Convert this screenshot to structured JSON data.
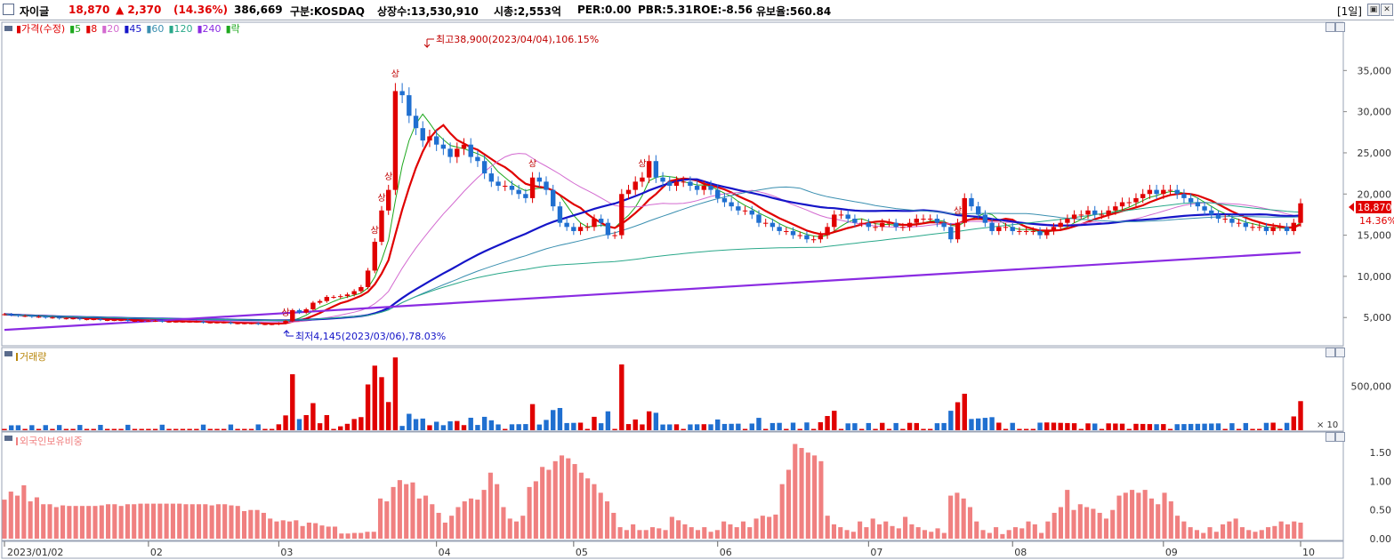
{
  "header": {
    "name": "자이글",
    "price": "18,870",
    "change": "▲ 2,370",
    "change_pct": "(14.36%)",
    "volume": "386,669",
    "market": "구분:KOSDAQ",
    "shares": "상장수:13,530,910",
    "mktcap": "시총:2,553억",
    "per": "PER:0.00",
    "pbr": "PBR:5.31",
    "roe": "ROE:-8.56",
    "float": "유보율:560.84",
    "period": "[1일]",
    "name_color": "#000000",
    "up_color": "#e00000"
  },
  "price_legend": {
    "items": [
      {
        "label": "가격(수정)",
        "color": "#e00000"
      },
      {
        "label": "5",
        "color": "#1ea81e"
      },
      {
        "label": "8",
        "color": "#e00000"
      },
      {
        "label": "20",
        "color": "#d36ad0"
      },
      {
        "label": "45",
        "color": "#1515c8"
      },
      {
        "label": "60",
        "color": "#3a8fb0"
      },
      {
        "label": "120",
        "color": "#2aa88a"
      },
      {
        "label": "240",
        "color": "#8a2be2"
      },
      {
        "label": "락",
        "color": "#1ea81e"
      }
    ]
  },
  "annotations": {
    "high": "최고38,900(2023/04/04),106.15%",
    "low": "최저4,145(2023/03/06),78.03%",
    "limit_up": "상",
    "last_price": "18,870",
    "last_pct": "14.36%"
  },
  "volume_panel": {
    "title": "거래량",
    "multiplier": "× 10"
  },
  "foreign_panel": {
    "title": "외국인보유비중"
  },
  "chart_data": {
    "type": "candlestick",
    "x_ticks": [
      "2023/01/02",
      "02",
      "03",
      "04",
      "05",
      "06",
      "07",
      "08",
      "09",
      "10"
    ],
    "price": {
      "y_ticks": [
        "35,000",
        "30,000",
        "25,000",
        "20,000",
        "15,000",
        "10,000",
        "5,000"
      ],
      "ylim": [
        2000,
        40000
      ],
      "high": 38900,
      "low": 4145,
      "last": 18870,
      "closes": [
        5400,
        5300,
        5200,
        5200,
        5100,
        5100,
        5000,
        5000,
        4900,
        4900,
        4900,
        4800,
        4800,
        4800,
        4700,
        4700,
        4700,
        4700,
        4600,
        4600,
        4600,
        4600,
        4600,
        4500,
        4500,
        4500,
        4500,
        4500,
        4500,
        4400,
        4400,
        4400,
        4400,
        4300,
        4300,
        4300,
        4300,
        4200,
        4200,
        4200,
        4300,
        4600,
        5900,
        5600,
        6000,
        6800,
        7000,
        7500,
        7500,
        7600,
        7800,
        8200,
        8700,
        10700,
        14200,
        18000,
        20500,
        32500,
        32000,
        29500,
        28000,
        26500,
        27000,
        26000,
        25500,
        24500,
        25500,
        26000,
        24500,
        24000,
        22500,
        21500,
        21000,
        21000,
        20500,
        20000,
        19500,
        22000,
        21500,
        20500,
        18500,
        16500,
        16000,
        15500,
        16000,
        16000,
        17000,
        16500,
        15000,
        15000,
        20000,
        20500,
        21500,
        22000,
        24000,
        22000,
        21500,
        21000,
        21500,
        21500,
        21000,
        20500,
        21000,
        20500,
        19500,
        19000,
        18500,
        18000,
        18000,
        17500,
        16500,
        16500,
        16000,
        15500,
        15500,
        15000,
        15000,
        14500,
        14500,
        15000,
        16000,
        17500,
        17500,
        17000,
        16500,
        16500,
        16000,
        16000,
        16500,
        16500,
        16000,
        16000,
        16500,
        17000,
        17000,
        17000,
        16500,
        16000,
        14500,
        16500,
        19500,
        18500,
        17500,
        16500,
        15500,
        16000,
        16000,
        15500,
        15500,
        15500,
        15500,
        15000,
        15500,
        16000,
        16500,
        17000,
        17500,
        17500,
        18000,
        17500,
        17500,
        18000,
        18500,
        19000,
        19000,
        19500,
        20000,
        20500,
        20000,
        20500,
        20500,
        20000,
        19500,
        19000,
        18500,
        18000,
        17500,
        17000,
        17000,
        16500,
        16500,
        16000,
        16000,
        16000,
        15500,
        16000,
        16000,
        15500,
        16500,
        18870
      ],
      "ma": [
        {
          "name": "5",
          "color": "#1ea81e"
        },
        {
          "name": "8",
          "color": "#e00000"
        },
        {
          "name": "20",
          "color": "#d36ad0"
        },
        {
          "name": "45",
          "color": "#1515c8"
        },
        {
          "name": "60",
          "color": "#3a8fb0"
        },
        {
          "name": "120",
          "color": "#2aa88a"
        },
        {
          "name": "240",
          "color": "#8a2be2",
          "values": [
            3500,
            12900
          ]
        }
      ]
    },
    "volume": {
      "y_ticks": [
        "500,000"
      ],
      "unit_label": "× 10",
      "ylim": [
        0,
        900000
      ]
    },
    "foreign_ratio": {
      "y_ticks": [
        "1.50",
        "1.00",
        "0.50",
        "0.00"
      ],
      "ylim": [
        0,
        1.75
      ],
      "values": [
        0.68,
        0.82,
        0.75,
        0.93,
        0.65,
        0.72,
        0.6,
        0.6,
        0.55,
        0.58,
        0.57,
        0.57,
        0.57,
        0.57,
        0.57,
        0.58,
        0.6,
        0.6,
        0.57,
        0.6,
        0.6,
        0.61,
        0.61,
        0.61,
        0.61,
        0.61,
        0.61,
        0.61,
        0.6,
        0.6,
        0.6,
        0.6,
        0.58,
        0.6,
        0.6,
        0.58,
        0.57,
        0.48,
        0.5,
        0.5,
        0.45,
        0.35,
        0.3,
        0.32,
        0.3,
        0.32,
        0.22,
        0.28,
        0.27,
        0.23,
        0.21,
        0.21,
        0.09,
        0.09,
        0.1,
        0.1,
        0.12,
        0.12,
        0.7,
        0.65,
        0.9,
        1.02,
        0.95,
        0.98,
        0.7,
        0.75,
        0.6,
        0.45,
        0.28,
        0.4,
        0.55,
        0.65,
        0.7,
        0.68,
        0.85,
        1.15,
        0.95,
        0.55,
        0.35,
        0.3,
        0.4,
        0.9,
        1.0,
        1.25,
        1.2,
        1.35,
        1.45,
        1.4,
        1.3,
        1.15,
        1.05,
        0.95,
        0.8,
        0.65,
        0.45,
        0.2,
        0.15,
        0.25,
        0.15,
        0.15,
        0.2,
        0.18,
        0.15,
        0.38,
        0.32,
        0.25,
        0.2,
        0.15,
        0.2,
        0.12,
        0.15,
        0.3,
        0.25,
        0.2,
        0.3,
        0.2,
        0.35,
        0.4,
        0.38,
        0.42,
        0.95,
        1.2,
        1.65,
        1.58,
        1.5,
        1.45,
        1.35,
        0.4,
        0.25,
        0.2,
        0.15,
        0.12,
        0.3,
        0.2,
        0.35,
        0.25,
        0.3,
        0.22,
        0.18,
        0.38,
        0.25,
        0.2,
        0.15,
        0.12,
        0.18,
        0.1,
        0.75,
        0.8,
        0.7,
        0.55,
        0.3,
        0.15,
        0.1,
        0.2,
        0.08,
        0.15,
        0.2,
        0.18,
        0.3,
        0.25,
        0.1,
        0.3,
        0.45,
        0.55,
        0.85,
        0.5,
        0.6,
        0.55,
        0.52,
        0.45,
        0.35,
        0.5,
        0.75,
        0.8,
        0.85,
        0.8,
        0.85,
        0.7,
        0.6,
        0.8,
        0.65,
        0.4,
        0.3,
        0.2,
        0.15,
        0.1,
        0.2,
        0.12,
        0.25,
        0.3,
        0.35,
        0.2,
        0.15,
        0.12,
        0.15,
        0.2,
        0.22,
        0.3,
        0.25,
        0.3,
        0.28
      ]
    }
  }
}
